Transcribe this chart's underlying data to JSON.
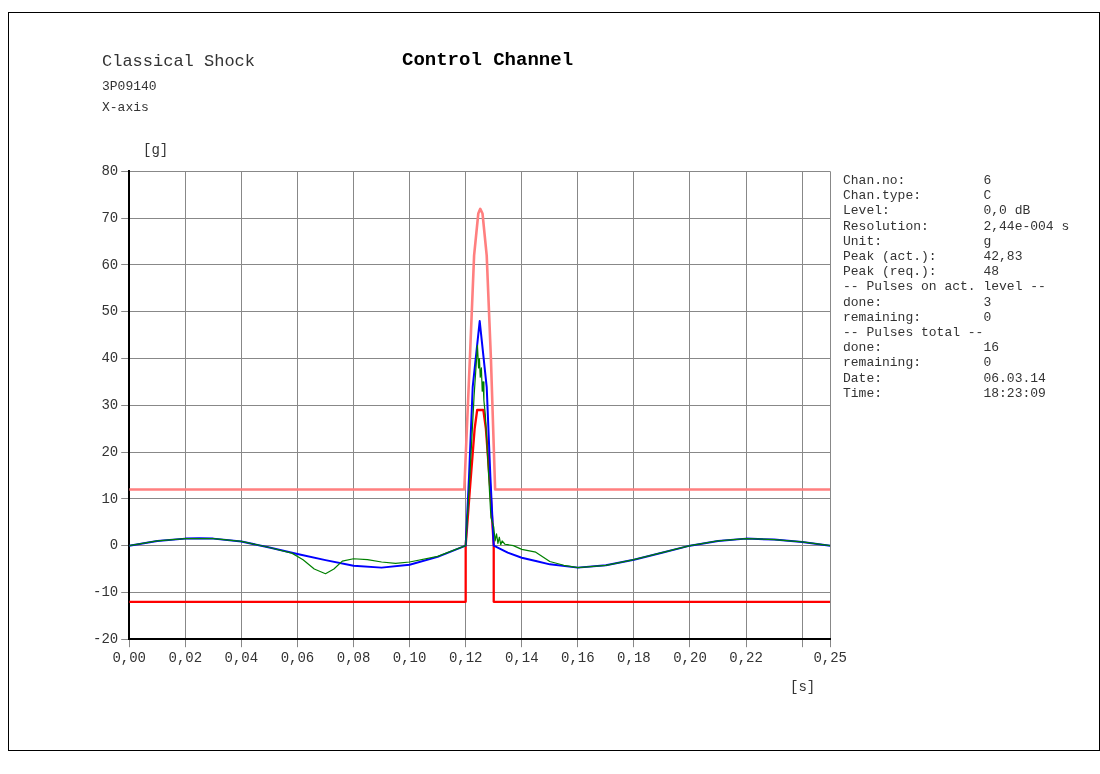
{
  "chart_data": {
    "type": "line",
    "title": "Control Channel",
    "subtitle": "Classical Shock",
    "xlabel": "[s]",
    "ylabel": "[g]",
    "annotations": [
      "3P09140",
      "X-axis",
      "Chan.no:          6",
      "Chan.type:        C",
      "Level:            0,0 dB",
      "Resolution:       2,44e-004 s",
      "Unit:             g",
      "Peak (act.):      42,83",
      "Peak (req.):      48",
      "-- Pulses on act. level --",
      "done:             3",
      "remaining:        0",
      "-- Pulses total --",
      "done:             16",
      "remaining:        0",
      "Date:             06.03.14",
      "Time:             18:23:09"
    ],
    "xlim": [
      0,
      0.25
    ],
    "ylim": [
      -20,
      80
    ],
    "xticks": [
      {
        "value": 0,
        "label": "0,00"
      },
      {
        "value": 0.02,
        "label": "0,02"
      },
      {
        "value": 0.04,
        "label": "0,04"
      },
      {
        "value": 0.06,
        "label": "0,06"
      },
      {
        "value": 0.08,
        "label": "0,08"
      },
      {
        "value": 0.1,
        "label": "0,10"
      },
      {
        "value": 0.12,
        "label": "0,12"
      },
      {
        "value": 0.14,
        "label": "0,14"
      },
      {
        "value": 0.16,
        "label": "0,16"
      },
      {
        "value": 0.18,
        "label": "0,18"
      },
      {
        "value": 0.2,
        "label": "0,20"
      },
      {
        "value": 0.22,
        "label": "0,22"
      },
      {
        "value": 0.24,
        "label": null
      },
      {
        "value": 0.25,
        "label": "0,25"
      }
    ],
    "yticks": [
      -20,
      -10,
      0,
      10,
      20,
      30,
      40,
      50,
      60,
      70,
      80
    ],
    "grid": true,
    "legend": false,
    "marker": "none",
    "line_style": "solid",
    "series": [
      {
        "color": "#ff7f7f",
        "x": [
          0,
          0.1195,
          0.1215,
          0.123,
          0.1245,
          0.1252,
          0.126,
          0.1275,
          0.129,
          0.1305,
          0.25
        ],
        "values": [
          12,
          12,
          40,
          62,
          71,
          72,
          71,
          62,
          40,
          12,
          12
        ]
      },
      {
        "color": "#ff0000",
        "x": [
          0,
          0.12,
          0.12,
          0.1215,
          0.1232,
          0.1241,
          0.1263,
          0.1272,
          0.1288,
          0.13,
          0.13,
          0.25
        ],
        "values": [
          -12,
          -12,
          0,
          12,
          25,
          29,
          29,
          25,
          12,
          0,
          -12,
          -12
        ]
      },
      {
        "color": "#0000ff",
        "x": [
          0,
          0.01,
          0.02,
          0.025,
          0.03,
          0.04,
          0.05,
          0.06,
          0.07,
          0.08,
          0.09,
          0.1,
          0.11,
          0.12,
          0.1212,
          0.1225,
          0.125,
          0.1275,
          0.1288,
          0.13,
          0.135,
          0.14,
          0.145,
          0.15,
          0.16,
          0.17,
          0.18,
          0.19,
          0.2,
          0.21,
          0.22,
          0.23,
          0.24,
          0.25
        ],
        "values": [
          0,
          1,
          1.5,
          1.6,
          1.5,
          0.9,
          -0.4,
          -1.8,
          -3.1,
          -4.3,
          -4.7,
          -4.1,
          -2.4,
          0,
          14.8,
          33.9,
          48,
          33.9,
          14.8,
          0,
          -1.5,
          -2.6,
          -3.3,
          -4,
          -4.7,
          -4.2,
          -3,
          -1.5,
          0,
          1,
          1.5,
          1.3,
          0.8,
          0
        ]
      },
      {
        "color": "#008000",
        "x": [
          0,
          0.01,
          0.02,
          0.03,
          0.04,
          0.05,
          0.058,
          0.062,
          0.066,
          0.07,
          0.073,
          0.076,
          0.08,
          0.085,
          0.09,
          0.095,
          0.1,
          0.11,
          0.12,
          0.1215,
          0.123,
          0.1242,
          0.1246,
          0.1249,
          0.1252,
          0.1256,
          0.1259,
          0.1262,
          0.1265,
          0.127,
          0.128,
          0.129,
          0.13,
          0.1305,
          0.131,
          0.1315,
          0.132,
          0.1325,
          0.133,
          0.134,
          0.135,
          0.137,
          0.14,
          0.145,
          0.15,
          0.155,
          0.16,
          0.17,
          0.18,
          0.19,
          0.2,
          0.21,
          0.22,
          0.23,
          0.24,
          0.25
        ],
        "values": [
          0,
          1,
          1.5,
          1.5,
          0.9,
          -0.4,
          -1.6,
          -3,
          -5,
          -6,
          -5,
          -3.3,
          -2.8,
          -3,
          -3.5,
          -3.8,
          -3.5,
          -2.3,
          0,
          15,
          32,
          42.8,
          38,
          40,
          36,
          38,
          33,
          35,
          31,
          28,
          17,
          6,
          4,
          1,
          2.5,
          0.5,
          1.8,
          0.2,
          1,
          0.3,
          0.2,
          0,
          -0.8,
          -1.4,
          -3.4,
          -4.2,
          -4.7,
          -4.2,
          -3,
          -1.5,
          0,
          1,
          1.5,
          1.3,
          0.8,
          0
        ]
      }
    ]
  }
}
